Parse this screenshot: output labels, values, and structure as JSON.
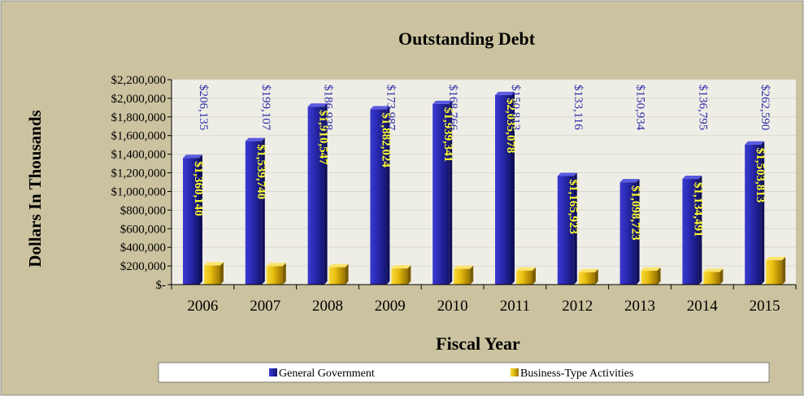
{
  "colors": {
    "outer_background": "#cbc3a0",
    "plot_background": "#efeee6",
    "series_general": "#2a2aa6",
    "series_business": "#e8c010",
    "label_general": "#ffff33",
    "label_business": "#2a2aaa"
  },
  "chart_data": {
    "type": "bar",
    "title": "Outstanding Debt",
    "xlabel": "Fiscal Year",
    "ylabel": "Dollars In Thousands",
    "ylim": [
      0,
      2200000
    ],
    "y_ticks": [
      0,
      200000,
      400000,
      600000,
      800000,
      1000000,
      1200000,
      1400000,
      1600000,
      1800000,
      2000000,
      2200000
    ],
    "y_tick_labels": [
      "$-",
      "$200,000",
      "$400,000",
      "$600,000",
      "$800,000",
      "$1,000,000",
      "$1,200,000",
      "$1,400,000",
      "$1,600,000",
      "$1,800,000",
      "$2,000,000",
      "$2,200,000"
    ],
    "categories": [
      "2006",
      "2007",
      "2008",
      "2009",
      "2010",
      "2011",
      "2012",
      "2013",
      "2014",
      "2015"
    ],
    "grid": true,
    "legend_position": "bottom",
    "series": [
      {
        "name": "General Government",
        "values": [
          1360140,
          1539740,
          1910547,
          1882024,
          1939341,
          2035078,
          1165923,
          1098723,
          1134491,
          1503813
        ],
        "labels": [
          "$1,360,140",
          "$1,539,740",
          "$1,910,547",
          "$1,882,024",
          "$1,939,341",
          "$2,035,078",
          "$1,165,923",
          "$1,098,723",
          "$1,134,491",
          "$1,503,813"
        ]
      },
      {
        "name": "Business-Type Activities",
        "values": [
          206135,
          199107,
          186938,
          173987,
          168766,
          150813,
          133116,
          150934,
          136795,
          262590
        ],
        "labels": [
          "$206,135",
          "$199,107",
          "$186,938",
          "$173,987",
          "$168,766",
          "$150,813",
          "$133,116",
          "$150,934",
          "$136,795",
          "$262,590"
        ]
      }
    ]
  }
}
